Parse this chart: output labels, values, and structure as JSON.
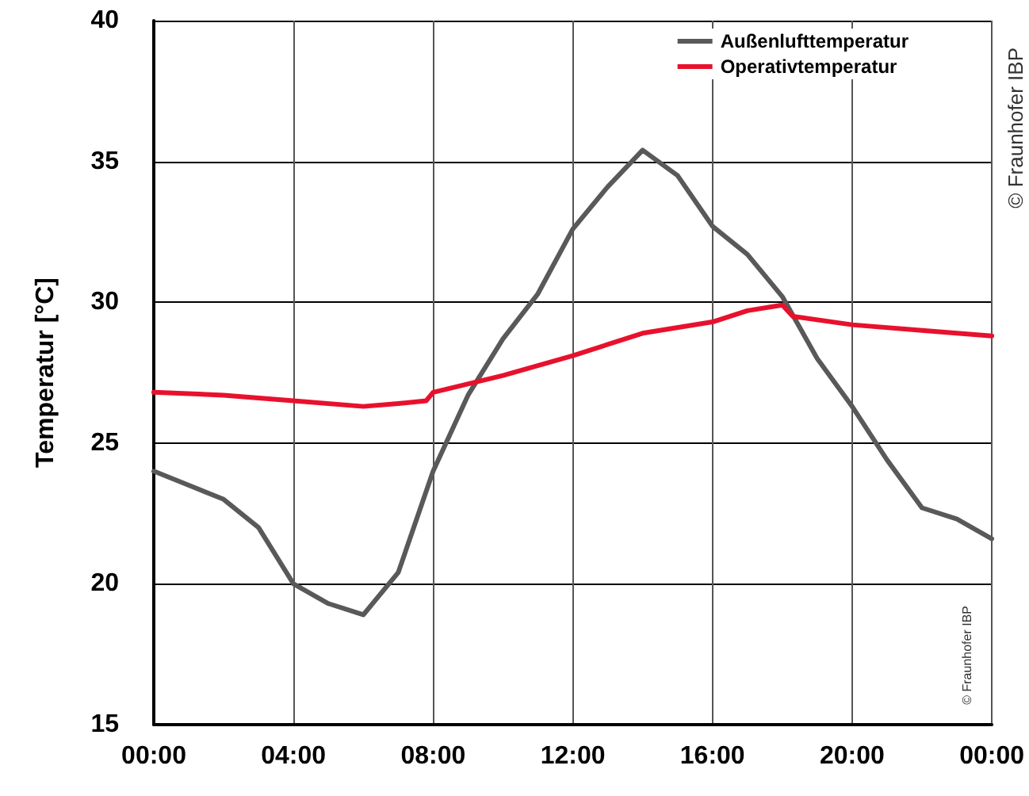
{
  "chart_data": {
    "type": "line",
    "ylabel": "Temperatur [°C]",
    "xlim": [
      0,
      24
    ],
    "xticks": [
      {
        "value": 0,
        "label": "00:00"
      },
      {
        "value": 4,
        "label": "04:00"
      },
      {
        "value": 8,
        "label": "08:00"
      },
      {
        "value": 12,
        "label": "12:00"
      },
      {
        "value": 16,
        "label": "16:00"
      },
      {
        "value": 20,
        "label": "20:00"
      },
      {
        "value": 24,
        "label": "00:00"
      }
    ],
    "ylim": [
      15,
      40
    ],
    "yticks": [
      15,
      20,
      25,
      30,
      35,
      40
    ],
    "grid": true,
    "legend": "top right",
    "marker": "none",
    "line_style": "solid",
    "series": [
      {
        "name": "Außenlufttemperatur",
        "color": "#595959",
        "x": [
          0,
          1,
          2,
          3,
          4,
          5,
          6,
          7,
          8,
          9,
          10,
          11,
          12,
          13,
          14,
          15,
          16,
          17,
          18,
          19,
          20,
          21,
          22,
          23,
          24
        ],
        "values": [
          24.0,
          23.5,
          23.0,
          22.0,
          20.0,
          19.3,
          18.9,
          20.4,
          24.0,
          26.7,
          28.7,
          30.3,
          32.6,
          34.1,
          35.4,
          34.5,
          32.7,
          31.7,
          30.2,
          28.0,
          26.3,
          24.4,
          22.7,
          22.3,
          21.6
        ]
      },
      {
        "name": "Operativtemperatur",
        "color": "#e8112d",
        "x": [
          0,
          2,
          4,
          6,
          7,
          7.8,
          8,
          10,
          12,
          14,
          16,
          17,
          18,
          18.3,
          20,
          22,
          24
        ],
        "values": [
          26.8,
          26.7,
          26.5,
          26.3,
          26.4,
          26.5,
          26.8,
          27.4,
          28.1,
          28.9,
          29.3,
          29.7,
          29.9,
          29.5,
          29.2,
          29.0,
          28.8
        ]
      }
    ],
    "annotations": [
      "© Fraunhofer IBP",
      "© Fraunhofer IBP"
    ]
  }
}
